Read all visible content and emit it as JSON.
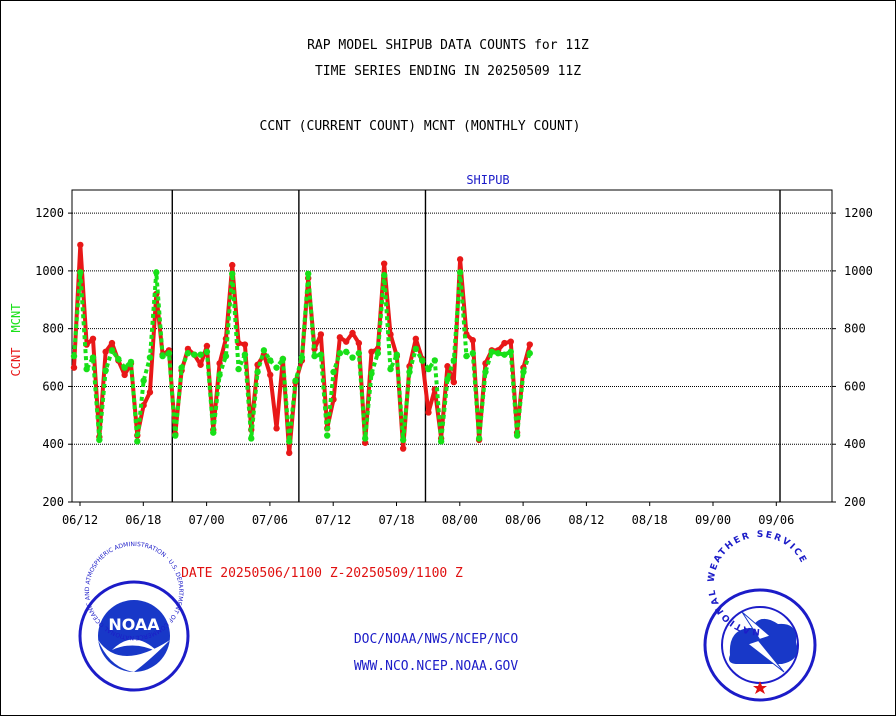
{
  "header": {
    "title_line1": "RAP MODEL SHIPUB DATA COUNTS for 11Z",
    "title_line2": "TIME SERIES ENDING IN 20250509 11Z",
    "subtitle": "CCNT (CURRENT COUNT) MCNT (MONTHLY COUNT)"
  },
  "footer": {
    "date_range": "DATE 20250506/1100 Z-20250509/1100 Z",
    "agency": "DOC/NOAA/NWS/NCEP/NCO",
    "website": "WWW.NCO.NCEP.NOAA.GOV"
  },
  "logos": {
    "noaa_text": "NOAA",
    "noaa_ring_text": "NATIONAL OCEANIC AND ATMOSPHERIC ADMINISTRATION · U.S. DEPARTMENT OF COMMERCE ·",
    "nws_ring_text": "NATIONAL WEATHER SERVICE"
  },
  "colors": {
    "ccnt": "#e81818",
    "mcnt": "#18e018",
    "plot_label": "#1c1cc8",
    "date_label": "#e01010"
  },
  "chart_data": {
    "type": "line",
    "title": "SHIPUB",
    "ylabel_ccnt": "CCNT",
    "ylabel_mcnt": "MCNT",
    "ylim": [
      200,
      1280
    ],
    "yticks": [
      200,
      400,
      600,
      800,
      1000,
      1200
    ],
    "ytick_labels": [
      "200",
      "400",
      "600",
      "800",
      "1000",
      "1200"
    ],
    "xtick_labels": [
      "06/12",
      "06/18",
      "07/00",
      "07/06",
      "07/12",
      "07/18",
      "08/00",
      "08/06",
      "08/12",
      "08/18",
      "09/00",
      "09/06"
    ],
    "grid": true,
    "series": [
      {
        "name": "CCNT",
        "values": [
          665,
          1090,
          745,
          765,
          425,
          720,
          750,
          690,
          640,
          680,
          430,
          535,
          580,
          920,
          710,
          725,
          435,
          655,
          730,
          710,
          675,
          740,
          450,
          680,
          765,
          1020,
          750,
          745,
          450,
          675,
          710,
          640,
          455,
          695,
          370,
          615,
          690,
          975,
          730,
          780,
          455,
          555,
          770,
          755,
          785,
          750,
          405,
          720,
          730,
          1025,
          780,
          705,
          385,
          670,
          765,
          695,
          510,
          590,
          420,
          670,
          615,
          1040,
          780,
          760,
          415,
          680,
          725,
          725,
          750,
          755,
          440,
          665,
          745
        ]
      },
      {
        "name": "MCNT",
        "values": [
          705,
          995,
          660,
          700,
          415,
          655,
          725,
          695,
          665,
          685,
          410,
          620,
          700,
          995,
          705,
          715,
          430,
          665,
          715,
          710,
          710,
          720,
          440,
          640,
          705,
          990,
          660,
          710,
          420,
          650,
          725,
          690,
          665,
          695,
          410,
          620,
          700,
          990,
          705,
          710,
          430,
          650,
          715,
          720,
          700,
          715,
          420,
          645,
          715,
          985,
          660,
          710,
          415,
          650,
          730,
          690,
          660,
          690,
          410,
          625,
          690,
          995,
          705,
          715,
          420,
          650,
          720,
          715,
          710,
          720,
          430,
          650,
          715
        ]
      }
    ],
    "major_divisions_at_index": [
      16,
      36,
      56
    ]
  }
}
